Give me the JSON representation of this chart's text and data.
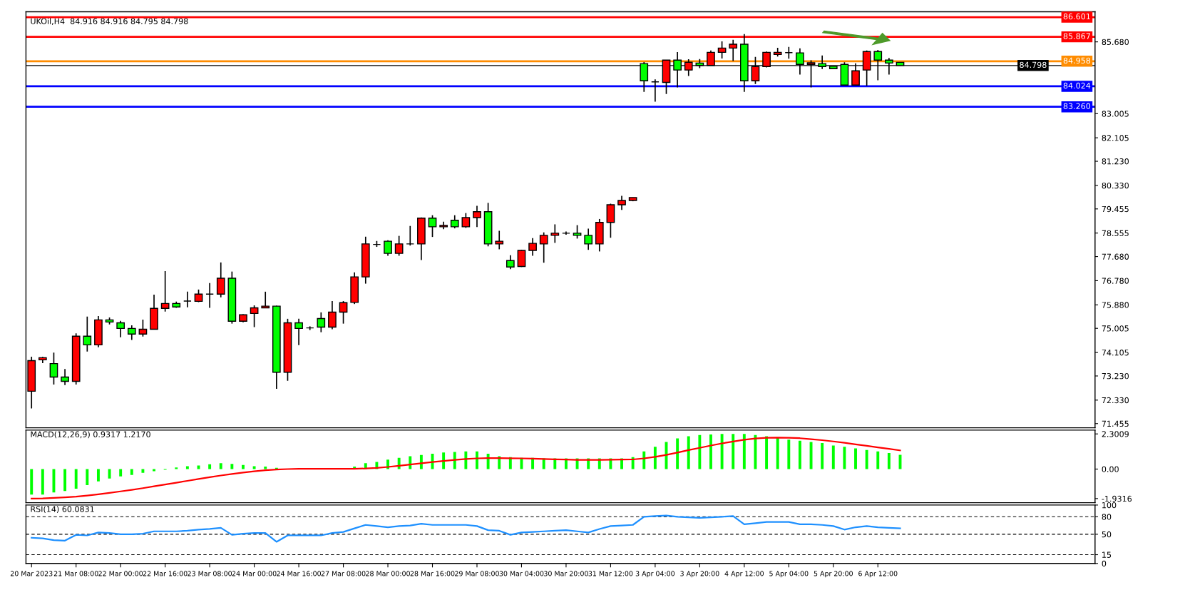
{
  "chart_data": [
    {
      "type": "candlestick",
      "title": "UKOil,H4  84.916 84.916 84.795 84.798",
      "categories": [
        null,
        null,
        null,
        null,
        null,
        null,
        null,
        null,
        null,
        null,
        null,
        null,
        null,
        null,
        null,
        null,
        null,
        null,
        null,
        null,
        null,
        null,
        null,
        null,
        null,
        null,
        null,
        null,
        null,
        null,
        null,
        null,
        null,
        null,
        null,
        null,
        null,
        null,
        null,
        null,
        null,
        null,
        null,
        null,
        null,
        null,
        null,
        null,
        null,
        null,
        null,
        null,
        null,
        null,
        null,
        null,
        null,
        null,
        null,
        null,
        null,
        null,
        null,
        null,
        null,
        null,
        null,
        null,
        null,
        null,
        null,
        null,
        null,
        null,
        null,
        null,
        null,
        null,
        null,
        null,
        null,
        null,
        null,
        null,
        null,
        null,
        null,
        null,
        null,
        null,
        null,
        null,
        null,
        null,
        null,
        null
      ],
      "ohlc": [
        [
          72.66,
          73.95,
          72.02,
          73.8
        ],
        [
          73.83,
          73.94,
          73.71,
          73.91
        ],
        [
          73.69,
          74.1,
          72.91,
          73.19
        ],
        [
          73.19,
          73.49,
          72.89,
          73.03
        ],
        [
          73.03,
          74.82,
          72.91,
          74.71
        ],
        [
          74.71,
          75.44,
          74.14,
          74.39
        ],
        [
          74.39,
          75.46,
          74.3,
          75.32
        ],
        [
          75.32,
          75.41,
          75.15,
          75.24
        ],
        [
          75.21,
          75.28,
          74.67,
          75.0
        ],
        [
          75.0,
          75.12,
          74.57,
          74.79
        ],
        [
          74.79,
          75.33,
          74.7,
          74.97
        ],
        [
          74.97,
          76.26,
          74.97,
          75.75
        ],
        [
          75.75,
          77.14,
          75.63,
          75.93
        ],
        [
          75.93,
          76.0,
          75.77,
          75.8
        ],
        [
          76.02,
          76.37,
          75.79,
          76.02
        ],
        [
          76.01,
          76.45,
          75.98,
          76.28
        ],
        [
          76.28,
          76.69,
          75.77,
          76.28
        ],
        [
          76.28,
          77.46,
          76.16,
          76.87
        ],
        [
          76.87,
          77.12,
          75.18,
          75.27
        ],
        [
          75.27,
          75.53,
          75.23,
          75.51
        ],
        [
          75.56,
          75.86,
          75.05,
          75.77
        ],
        [
          75.77,
          76.37,
          75.76,
          75.83
        ],
        [
          75.83,
          75.85,
          72.75,
          73.37
        ],
        [
          73.37,
          75.36,
          73.05,
          75.21
        ],
        [
          75.21,
          75.36,
          74.38,
          75.0
        ],
        [
          75.02,
          75.08,
          74.94,
          75.02
        ],
        [
          75.37,
          75.6,
          74.86,
          75.05
        ],
        [
          75.05,
          76.02,
          74.97,
          75.61
        ],
        [
          75.61,
          76.02,
          75.18,
          75.96
        ],
        [
          75.97,
          77.09,
          75.91,
          76.92
        ],
        [
          76.92,
          78.42,
          76.67,
          78.15
        ],
        [
          78.13,
          78.26,
          78.04,
          78.13
        ],
        [
          78.25,
          78.29,
          77.71,
          77.8
        ],
        [
          77.8,
          78.45,
          77.71,
          78.15
        ],
        [
          78.15,
          78.82,
          78.09,
          78.15
        ],
        [
          78.15,
          79.14,
          77.55,
          79.11
        ],
        [
          79.11,
          79.22,
          78.41,
          78.79
        ],
        [
          78.79,
          78.98,
          78.7,
          78.84
        ],
        [
          79.03,
          79.22,
          78.73,
          78.79
        ],
        [
          78.79,
          79.3,
          78.75,
          79.13
        ],
        [
          79.13,
          79.57,
          78.78,
          79.35
        ],
        [
          79.35,
          79.68,
          78.06,
          78.15
        ],
        [
          78.15,
          78.64,
          77.95,
          78.25
        ],
        [
          77.53,
          77.73,
          77.21,
          77.29
        ],
        [
          77.31,
          77.93,
          77.29,
          77.91
        ],
        [
          77.91,
          78.37,
          77.71,
          78.17
        ],
        [
          78.15,
          78.58,
          77.45,
          78.47
        ],
        [
          78.47,
          78.88,
          78.19,
          78.55
        ],
        [
          78.55,
          78.61,
          78.49,
          78.55
        ],
        [
          78.55,
          78.85,
          78.35,
          78.47
        ],
        [
          78.47,
          78.72,
          77.93,
          78.15
        ],
        [
          78.15,
          79.08,
          77.87,
          78.95
        ],
        [
          78.95,
          79.65,
          78.38,
          79.61
        ],
        [
          79.61,
          79.94,
          79.42,
          79.77
        ],
        [
          79.77,
          79.88,
          79.74,
          79.88
        ],
        [
          84.87,
          84.93,
          83.82,
          84.23
        ],
        [
          84.19,
          84.28,
          83.45,
          84.19
        ],
        [
          84.17,
          85.0,
          83.74,
          85.0
        ],
        [
          85.0,
          85.3,
          83.98,
          84.63
        ],
        [
          84.63,
          85.03,
          84.41,
          84.92
        ],
        [
          84.89,
          85.04,
          84.7,
          84.8
        ],
        [
          84.8,
          85.36,
          84.8,
          85.29
        ],
        [
          85.29,
          85.7,
          85.06,
          85.45
        ],
        [
          85.45,
          85.76,
          84.97,
          85.59
        ],
        [
          85.59,
          85.97,
          83.82,
          84.23
        ],
        [
          84.23,
          85.12,
          84.11,
          84.76
        ],
        [
          84.76,
          85.32,
          84.73,
          85.29
        ],
        [
          85.21,
          85.46,
          85.13,
          85.29
        ],
        [
          85.28,
          85.49,
          85.05,
          85.28
        ],
        [
          85.27,
          85.44,
          84.46,
          84.84
        ],
        [
          84.84,
          84.99,
          83.98,
          84.9
        ],
        [
          84.87,
          85.17,
          84.67,
          84.76
        ],
        [
          84.77,
          84.77,
          84.68,
          84.68
        ],
        [
          84.84,
          84.92,
          84.07,
          84.07
        ],
        [
          84.07,
          84.88,
          84.07,
          84.6
        ],
        [
          84.63,
          85.36,
          84.04,
          85.32
        ],
        [
          85.32,
          85.38,
          84.25,
          85.0
        ],
        [
          85.0,
          85.08,
          84.46,
          84.89
        ],
        [
          84.916,
          84.916,
          84.795,
          84.798
        ],
        null,
        null,
        null,
        null,
        null,
        null,
        null,
        null,
        null,
        null,
        null,
        null,
        null,
        null,
        null,
        null,
        null
      ],
      "colors": [
        "#ff0000",
        "#ff0000",
        "#00ff00",
        "#00ff00",
        "#ff0000",
        "#00ff00",
        "#ff0000",
        "#00ff00",
        "#00ff00",
        "#00ff00",
        "#ff0000",
        "#ff0000",
        "#ff0000",
        "#00ff00",
        "#000000",
        "#ff0000",
        "#000000",
        "#ff0000",
        "#00ff00",
        "#ff0000",
        "#ff0000",
        "#ff0000",
        "#00ff00",
        "#ff0000",
        "#00ff00",
        "#000000",
        "#00ff00",
        "#ff0000",
        "#ff0000",
        "#ff0000",
        "#ff0000",
        "#000000",
        "#00ff00",
        "#ff0000",
        "#000000",
        "#ff0000",
        "#00ff00",
        "#ff0000",
        "#00ff00",
        "#ff0000",
        "#ff0000",
        "#00ff00",
        "#ff0000",
        "#00ff00",
        "#ff0000",
        "#ff0000",
        "#ff0000",
        "#ff0000",
        "#000000",
        "#00ff00",
        "#00ff00",
        "#ff0000",
        "#ff0000",
        "#ff0000",
        "#ff0000",
        "#00ff00",
        "#000000",
        "#ff0000",
        "#00ff00",
        "#ff0000",
        "#00ff00",
        "#ff0000",
        "#ff0000",
        "#ff0000",
        "#00ff00",
        "#ff0000",
        "#ff0000",
        "#ff0000",
        "#000000",
        "#00ff00",
        "#ff0000",
        "#00ff00",
        "#00ff00",
        "#00ff00",
        "#ff0000",
        "#ff0000",
        "#00ff00",
        "#00ff00",
        "#00ff00",
        null,
        null,
        null,
        null,
        null,
        null,
        null,
        null,
        null,
        null,
        null,
        null,
        null,
        null,
        null,
        null,
        null
      ],
      "ylim": [
        71.3,
        86.8
      ],
      "yticks": [
        {
          "value": 85.68,
          "label": "85.680"
        },
        {
          "value": 83.005,
          "label": "83.005"
        },
        {
          "value": 82.105,
          "label": "82.105"
        },
        {
          "value": 81.23,
          "label": "81.230"
        },
        {
          "value": 80.33,
          "label": "80.330"
        },
        {
          "value": 79.455,
          "label": "79.455"
        },
        {
          "value": 78.555,
          "label": "78.555"
        },
        {
          "value": 77.68,
          "label": "77.680"
        },
        {
          "value": 76.78,
          "label": "76.780"
        },
        {
          "value": 75.88,
          "label": "75.880"
        },
        {
          "value": 75.005,
          "label": "75.005"
        },
        {
          "value": 74.105,
          "label": "74.105"
        },
        {
          "value": 73.23,
          "label": "73.230"
        },
        {
          "value": 72.33,
          "label": "72.330"
        },
        {
          "value": 71.455,
          "label": "71.455"
        }
      ],
      "ref_lines": [
        {
          "axis": "y",
          "value": 86.601,
          "label": "86.601",
          "color": "#ff0000"
        },
        {
          "axis": "y",
          "value": 85.867,
          "label": "85.867",
          "color": "#ff0000"
        },
        {
          "axis": "y",
          "value": 84.958,
          "label": "84.958",
          "color": "#ff8c00"
        },
        {
          "axis": "y",
          "value": 84.798,
          "label": "84.798",
          "color": "#000000"
        },
        {
          "axis": "y",
          "value": 84.024,
          "label": "84.024",
          "color": "#0000ff"
        },
        {
          "axis": "y",
          "value": 83.26,
          "label": "83.260",
          "color": "#0000ff"
        }
      ],
      "tick_labels": "y"
    },
    {
      "type": "bar",
      "title": "MACD(12,26,9) 0.9317 1.2170",
      "categories": [
        null,
        null,
        null,
        null,
        null,
        null,
        null,
        null,
        null,
        null,
        null,
        null,
        null,
        null,
        null,
        null,
        null,
        null,
        null,
        null,
        null,
        null,
        null,
        null,
        null,
        null,
        null,
        null,
        null,
        null,
        null,
        null,
        null,
        null,
        null,
        null,
        null,
        null,
        null,
        null,
        null,
        null,
        null,
        null,
        null,
        null,
        null,
        null,
        null,
        null,
        null,
        null,
        null,
        null,
        null,
        null,
        null,
        null,
        null,
        null,
        null,
        null,
        null,
        null,
        null,
        null,
        null,
        null,
        null,
        null,
        null,
        null,
        null,
        null,
        null,
        null,
        null,
        null,
        null,
        null,
        null,
        null,
        null,
        null,
        null,
        null,
        null,
        null,
        null,
        null,
        null,
        null,
        null,
        null,
        null,
        null
      ],
      "series": [
        {
          "type": "bar",
          "color": "#00ff00",
          "values": [
            -1.67,
            -1.67,
            -1.53,
            -1.44,
            -1.29,
            -1.05,
            -0.81,
            -0.62,
            -0.48,
            -0.38,
            -0.24,
            -0.14,
            -0.05,
            0.11,
            0.19,
            0.23,
            0.31,
            0.39,
            0.34,
            0.27,
            0.19,
            0.16,
            0.08,
            null,
            0,
            null,
            null,
            0,
            null,
            0.16,
            0.39,
            0.47,
            0.62,
            0.73,
            0.84,
            0.92,
            1.0,
            1.08,
            1.12,
            1.15,
            1.15,
            1.0,
            0.84,
            0.78,
            0.73,
            0.73,
            0.7,
            0.7,
            0.7,
            0.7,
            0.7,
            0.7,
            0.7,
            0.7,
            0.78,
            1.15,
            1.46,
            1.77,
            2.01,
            2.15,
            2.23,
            2.27,
            2.3,
            2.3,
            2.3,
            2.23,
            2.15,
            2.07,
            1.93,
            1.85,
            1.77,
            1.7,
            1.54,
            1.46,
            1.35,
            1.25,
            1.15,
            1.05,
            0.93,
            null,
            null,
            null,
            null,
            null,
            null,
            null,
            null,
            null,
            null,
            null,
            null,
            null,
            null,
            null,
            null,
            null
          ]
        },
        {
          "type": "line",
          "color": "#ff0000",
          "values": [
            -1.93,
            -1.92,
            -1.89,
            -1.85,
            -1.8,
            -1.73,
            -1.65,
            -1.56,
            -1.46,
            -1.36,
            -1.25,
            -1.13,
            -1.01,
            -0.89,
            -0.77,
            -0.65,
            -0.53,
            -0.42,
            -0.32,
            -0.23,
            -0.15,
            -0.08,
            -0.03,
            0.0,
            0.02,
            0.02,
            0.02,
            0.02,
            0.02,
            0.02,
            0.04,
            0.08,
            0.14,
            0.22,
            0.3,
            0.38,
            0.46,
            0.53,
            0.6,
            0.66,
            0.7,
            0.72,
            0.72,
            0.71,
            0.7,
            0.68,
            0.66,
            0.64,
            0.62,
            0.6,
            0.6,
            0.6,
            0.61,
            0.62,
            0.63,
            0.7,
            0.8,
            0.93,
            1.08,
            1.24,
            1.39,
            1.54,
            1.68,
            1.8,
            1.92,
            2.0,
            2.05,
            2.06,
            2.05,
            2.02,
            1.96,
            1.89,
            1.81,
            1.72,
            1.62,
            1.52,
            1.42,
            1.32,
            1.22,
            null,
            null,
            null,
            null,
            null,
            null,
            null,
            null,
            null,
            null,
            null,
            null,
            null,
            null,
            null,
            null,
            null
          ]
        }
      ],
      "ylim": [
        -2.2,
        2.55
      ],
      "yticks": [
        {
          "value": 2.3009,
          "label": "2.3009"
        },
        {
          "value": 0,
          "label": "0.00"
        },
        {
          "value": -1.9316,
          "label": "-1.9316"
        }
      ],
      "tick_labels": "y"
    },
    {
      "type": "line",
      "title": "RSI(14) 60.0831",
      "categories": [
        "20 Mar 2023",
        null,
        null,
        null,
        "21 Mar 08:00",
        null,
        null,
        null,
        "22 Mar 00:00",
        null,
        null,
        null,
        "22 Mar 16:00",
        null,
        null,
        null,
        "23 Mar 08:00",
        null,
        null,
        null,
        "24 Mar 00:00",
        null,
        null,
        null,
        "24 Mar 16:00",
        null,
        null,
        null,
        "27 Mar 08:00",
        null,
        null,
        null,
        "28 Mar 00:00",
        null,
        null,
        null,
        "28 Mar 16:00",
        null,
        null,
        null,
        "29 Mar 08:00",
        null,
        null,
        null,
        "30 Mar 04:00",
        null,
        null,
        null,
        "30 Mar 20:00",
        null,
        null,
        null,
        "31 Mar 12:00",
        null,
        null,
        null,
        "3 Apr 04:00",
        null,
        null,
        null,
        "3 Apr 20:00",
        null,
        null,
        null,
        "4 Apr 12:00",
        null,
        null,
        null,
        "5 Apr 04:00",
        null,
        null,
        null,
        "5 Apr 20:00",
        null,
        null,
        null,
        "6 Apr 12:00",
        null,
        null,
        null,
        null,
        null,
        null,
        null,
        null,
        null,
        null,
        null,
        null,
        null,
        null,
        null,
        null,
        null,
        null,
        null
      ],
      "series": [
        {
          "color": "#1e90ff",
          "values": [
            44,
            43,
            40,
            39,
            49,
            48,
            53,
            52,
            50,
            50,
            51,
            55,
            55,
            55,
            56,
            58,
            59,
            61,
            49,
            51,
            52,
            52,
            37,
            48,
            48,
            48,
            48,
            52,
            54,
            60,
            66,
            64,
            62,
            64,
            65,
            68,
            66,
            66,
            66,
            66,
            64,
            57,
            56,
            49,
            53,
            54,
            55,
            56,
            57,
            55,
            53,
            59,
            64,
            65,
            66,
            80,
            81,
            82,
            80,
            79,
            78,
            79,
            80,
            81,
            67,
            69,
            71,
            71,
            71,
            67,
            67,
            66,
            64,
            58,
            62,
            64,
            62,
            61,
            60,
            null,
            null,
            null,
            null,
            null,
            null,
            null,
            null,
            null,
            null,
            null,
            null,
            null,
            null,
            null,
            null,
            null
          ]
        }
      ],
      "ylim": [
        0,
        100
      ],
      "yticks": [
        0,
        15,
        50,
        80,
        100
      ],
      "ref_lines": [
        {
          "axis": "y",
          "value": 80,
          "color": "#000000",
          "line_style": "dashed"
        },
        {
          "axis": "y",
          "value": 50,
          "color": "#000000",
          "line_style": "dashed"
        },
        {
          "axis": "y",
          "value": 15,
          "color": "#000000",
          "line_style": "dashed"
        }
      ]
    }
  ]
}
